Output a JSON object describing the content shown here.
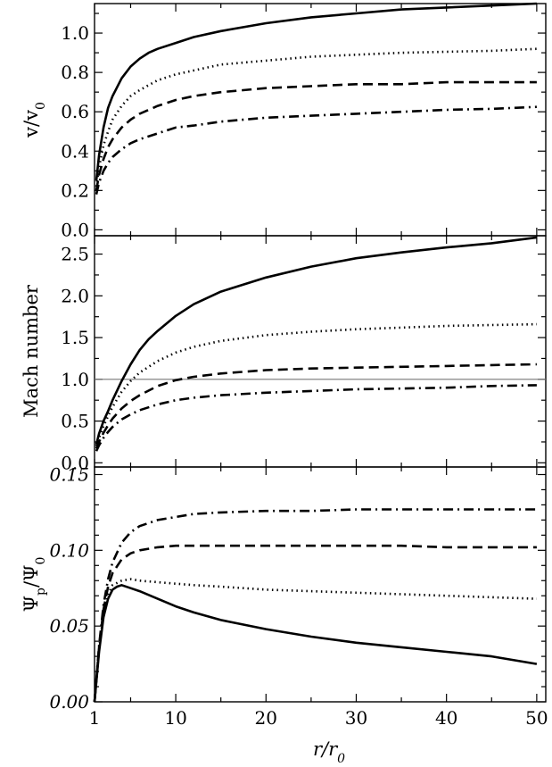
{
  "figure": {
    "xlabel": {
      "main": "r",
      "sub": "0",
      "sep": "/"
    }
  },
  "chart_data": [
    {
      "type": "line",
      "title": "",
      "ylabel": {
        "main": "v",
        "sep": "/",
        "base": "v",
        "sub": "0"
      },
      "ylabel_text": "v/v0",
      "xlim": [
        1,
        51
      ],
      "ylim": [
        -0.03,
        1.15
      ],
      "xticks": [
        1,
        10,
        20,
        30,
        40,
        50
      ],
      "yticks": [
        0.0,
        0.2,
        0.4,
        0.6,
        0.8,
        1.0
      ],
      "ytick_labels": [
        "0.0",
        "0.2",
        "0.4",
        "0.6",
        "0.8",
        "1.0"
      ],
      "ytick_italic": false,
      "series": [
        {
          "style": "solid",
          "x": [
            1.2,
            1.5,
            2,
            2.5,
            3,
            4,
            5,
            6,
            7,
            8,
            10,
            12,
            15,
            20,
            25,
            30,
            35,
            40,
            45,
            50
          ],
          "y": [
            0.25,
            0.38,
            0.52,
            0.62,
            0.68,
            0.77,
            0.83,
            0.87,
            0.9,
            0.92,
            0.95,
            0.98,
            1.01,
            1.05,
            1.08,
            1.1,
            1.12,
            1.13,
            1.14,
            1.15
          ]
        },
        {
          "style": "dotted",
          "x": [
            1.2,
            1.5,
            2,
            2.5,
            3,
            4,
            5,
            6,
            8,
            10,
            12,
            15,
            20,
            25,
            30,
            35,
            40,
            45,
            50
          ],
          "y": [
            0.22,
            0.32,
            0.43,
            0.5,
            0.56,
            0.63,
            0.68,
            0.71,
            0.76,
            0.79,
            0.81,
            0.84,
            0.86,
            0.88,
            0.89,
            0.9,
            0.905,
            0.91,
            0.92
          ]
        },
        {
          "style": "dashed",
          "x": [
            1.2,
            1.5,
            2,
            2.5,
            3,
            4,
            5,
            6,
            8,
            10,
            12,
            15,
            20,
            25,
            30,
            35,
            40,
            45,
            50
          ],
          "y": [
            0.2,
            0.28,
            0.36,
            0.42,
            0.46,
            0.52,
            0.56,
            0.59,
            0.63,
            0.66,
            0.68,
            0.7,
            0.72,
            0.73,
            0.74,
            0.74,
            0.75,
            0.75,
            0.75
          ]
        },
        {
          "style": "dashdot",
          "x": [
            1.2,
            1.5,
            2,
            2.5,
            3,
            4,
            5,
            6,
            8,
            10,
            12,
            15,
            20,
            25,
            30,
            35,
            40,
            45,
            50
          ],
          "y": [
            0.18,
            0.24,
            0.3,
            0.34,
            0.37,
            0.41,
            0.44,
            0.46,
            0.49,
            0.52,
            0.53,
            0.55,
            0.57,
            0.58,
            0.59,
            0.6,
            0.61,
            0.615,
            0.625
          ]
        }
      ]
    },
    {
      "type": "line",
      "title": "",
      "ylabel": {
        "text": "Mach number"
      },
      "ylabel_text": "Mach number",
      "xlim": [
        1,
        51
      ],
      "ylim": [
        -0.05,
        2.72
      ],
      "xticks": [
        1,
        10,
        20,
        30,
        40,
        50
      ],
      "yticks": [
        0.0,
        0.5,
        1.0,
        1.5,
        2.0,
        2.5
      ],
      "ytick_labels": [
        "0.0",
        "0.5",
        "1.0",
        "1.5",
        "2.0",
        "2.5"
      ],
      "ytick_italic": false,
      "reference_line": 1.0,
      "series": [
        {
          "style": "solid",
          "x": [
            1.2,
            1.5,
            2,
            2.5,
            3,
            4,
            5,
            6,
            7,
            8,
            10,
            12,
            15,
            20,
            25,
            30,
            35,
            40,
            45,
            50
          ],
          "y": [
            0.22,
            0.35,
            0.5,
            0.62,
            0.75,
            0.98,
            1.18,
            1.35,
            1.48,
            1.58,
            1.76,
            1.9,
            2.05,
            2.22,
            2.35,
            2.45,
            2.52,
            2.58,
            2.63,
            2.7
          ]
        },
        {
          "style": "dotted",
          "x": [
            1.2,
            1.5,
            2,
            2.5,
            3,
            4,
            5,
            6,
            8,
            10,
            12,
            15,
            20,
            25,
            30,
            35,
            40,
            45,
            50
          ],
          "y": [
            0.2,
            0.3,
            0.44,
            0.56,
            0.67,
            0.85,
            0.98,
            1.08,
            1.22,
            1.32,
            1.39,
            1.46,
            1.53,
            1.57,
            1.6,
            1.62,
            1.64,
            1.65,
            1.66
          ]
        },
        {
          "style": "dashed",
          "x": [
            1.2,
            1.5,
            2,
            2.5,
            3,
            4,
            5,
            6,
            8,
            10,
            12,
            15,
            20,
            25,
            30,
            35,
            40,
            45,
            50
          ],
          "y": [
            0.17,
            0.25,
            0.36,
            0.45,
            0.53,
            0.65,
            0.74,
            0.81,
            0.92,
            0.99,
            1.03,
            1.07,
            1.11,
            1.13,
            1.14,
            1.15,
            1.16,
            1.17,
            1.18
          ]
        },
        {
          "style": "dashdot",
          "x": [
            1.2,
            1.5,
            2,
            2.5,
            3,
            4,
            5,
            6,
            8,
            10,
            12,
            15,
            20,
            25,
            30,
            35,
            40,
            45,
            50
          ],
          "y": [
            0.14,
            0.21,
            0.3,
            0.37,
            0.43,
            0.52,
            0.58,
            0.63,
            0.7,
            0.75,
            0.78,
            0.81,
            0.84,
            0.86,
            0.88,
            0.89,
            0.9,
            0.92,
            0.93
          ]
        }
      ]
    },
    {
      "type": "line",
      "title": "",
      "ylabel": {
        "main": "Ψ",
        "sub": "p",
        "sep": "/",
        "base": "Ψ",
        "sub2": "0"
      },
      "ylabel_text": "Ψp/Ψ0",
      "xlim": [
        1,
        51
      ],
      "ylim": [
        0.0,
        0.155
      ],
      "xticks": [
        1,
        10,
        20,
        30,
        40,
        50
      ],
      "xtick_labels": [
        "1",
        "10",
        "20",
        "30",
        "40",
        "50"
      ],
      "yticks": [
        0.0,
        0.05,
        0.1,
        0.15
      ],
      "ytick_labels": [
        "0.00",
        "0.05",
        "0.10",
        "0.15"
      ],
      "ytick_italic": true,
      "series": [
        {
          "style": "solid",
          "x": [
            1,
            1.5,
            2,
            2.5,
            3,
            3.5,
            4,
            5,
            6,
            8,
            10,
            12,
            15,
            20,
            25,
            30,
            35,
            40,
            45,
            50
          ],
          "y": [
            0.0,
            0.033,
            0.056,
            0.068,
            0.074,
            0.076,
            0.077,
            0.075,
            0.073,
            0.068,
            0.063,
            0.059,
            0.054,
            0.048,
            0.043,
            0.039,
            0.036,
            0.033,
            0.03,
            0.025
          ]
        },
        {
          "style": "dotted",
          "x": [
            1,
            1.5,
            2,
            2.5,
            3,
            4,
            5,
            6,
            8,
            10,
            12,
            15,
            20,
            25,
            30,
            35,
            40,
            45,
            50
          ],
          "y": [
            0.0,
            0.035,
            0.058,
            0.071,
            0.077,
            0.08,
            0.081,
            0.08,
            0.079,
            0.078,
            0.077,
            0.076,
            0.074,
            0.073,
            0.072,
            0.071,
            0.07,
            0.069,
            0.068
          ]
        },
        {
          "style": "dashed",
          "x": [
            1,
            1.5,
            2,
            2.5,
            3,
            4,
            5,
            6,
            8,
            10,
            12,
            15,
            20,
            25,
            30,
            35,
            40,
            45,
            50
          ],
          "y": [
            0.0,
            0.036,
            0.061,
            0.076,
            0.085,
            0.094,
            0.098,
            0.1,
            0.102,
            0.103,
            0.103,
            0.103,
            0.103,
            0.103,
            0.103,
            0.103,
            0.102,
            0.102,
            0.102
          ]
        },
        {
          "style": "dashdot",
          "x": [
            1,
            1.5,
            2,
            2.5,
            3,
            4,
            5,
            6,
            8,
            10,
            12,
            15,
            20,
            25,
            30,
            35,
            40,
            45,
            50
          ],
          "y": [
            0.0,
            0.037,
            0.064,
            0.081,
            0.092,
            0.105,
            0.112,
            0.116,
            0.12,
            0.122,
            0.124,
            0.125,
            0.126,
            0.126,
            0.127,
            0.127,
            0.127,
            0.127,
            0.127
          ]
        }
      ]
    }
  ]
}
